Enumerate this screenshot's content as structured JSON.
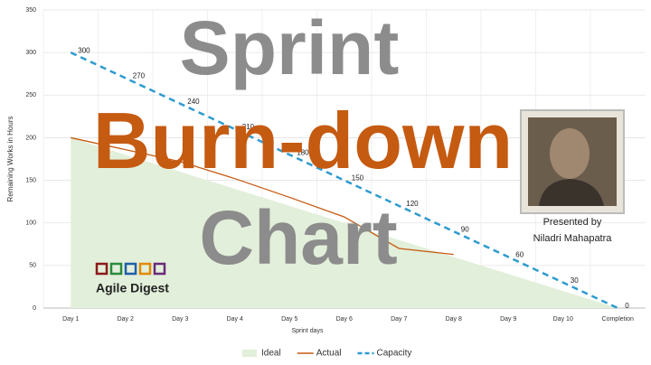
{
  "chart_data": {
    "type": "line",
    "x_label": "Sprint days",
    "y_label": "Remaining Works in Hours",
    "categories": [
      "Day 1",
      "Day 2",
      "Day 3",
      "Day 4",
      "Day 5",
      "Day 6",
      "Day 7",
      "Day 8",
      "Day 9",
      "Day 10",
      "Completion"
    ],
    "series": [
      {
        "name": "Ideal",
        "color": "#e2efda",
        "style": "area",
        "values": [
          200,
          180,
          160,
          140,
          120,
          100,
          80,
          60,
          40,
          20,
          0
        ]
      },
      {
        "name": "Actual",
        "color": "#c55a11",
        "style": "line",
        "values": [
          200,
          186,
          172,
          152,
          130,
          107,
          70,
          63,
          null,
          null,
          null
        ]
      },
      {
        "name": "Capacity",
        "color": "#2e9bd0",
        "style": "dashed",
        "values": [
          300,
          270,
          240,
          210,
          180,
          150,
          120,
          90,
          60,
          30,
          0
        ],
        "data_labels": true
      }
    ],
    "ylim": [
      0,
      350
    ],
    "yticks": [
      0,
      50,
      100,
      150,
      200,
      250,
      300,
      350
    ],
    "grid": true,
    "legend": "bottom"
  },
  "overlay": {
    "title_lines": [
      "Sprint",
      "Burn-down",
      "Chart"
    ],
    "presenter_caption": "Presented by",
    "presenter_name": "Niladri Mahapatra",
    "logo_text": "Agile Digest"
  }
}
